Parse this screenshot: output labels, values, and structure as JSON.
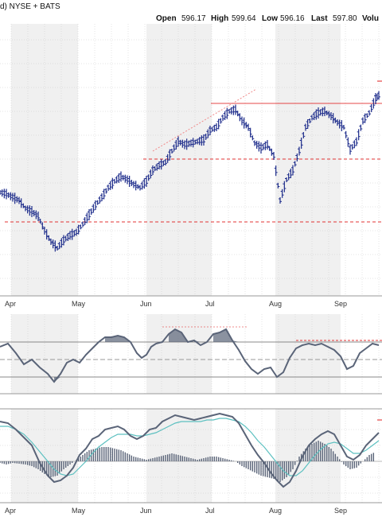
{
  "header": {
    "exchange": "d) NYSE + BATS",
    "open_label": "Open",
    "open_value": "596.17",
    "high_label": "High",
    "high_value": "599.64",
    "low_label": "Low",
    "low_value": "596.16",
    "last_label": "Last",
    "last_value": "597.80",
    "volume_label": "Volu"
  },
  "colors": {
    "price_bar": "#1b2a8a",
    "line_indicator": "#5a6478",
    "signal_line": "#5cc0c0",
    "histogram": "#5a6478",
    "trend_line": "#e02020",
    "band_shade": "#f0f0f0",
    "grid": "#c8c8c8"
  },
  "chart_data": [
    {
      "type": "bar",
      "subtype": "ohlc-price",
      "x_tick_labels": [
        "Apr",
        "May",
        "Jun",
        "Jul",
        "Aug",
        "Sep"
      ],
      "ohlc_close_path": [
        [
          0,
          242
        ],
        [
          8,
          244
        ],
        [
          16,
          248
        ],
        [
          24,
          252
        ],
        [
          32,
          262
        ],
        [
          40,
          266
        ],
        [
          48,
          272
        ],
        [
          56,
          290
        ],
        [
          64,
          304
        ],
        [
          72,
          312
        ],
        [
          80,
          302
        ],
        [
          88,
          296
        ],
        [
          96,
          292
        ],
        [
          104,
          282
        ],
        [
          112,
          270
        ],
        [
          120,
          258
        ],
        [
          128,
          248
        ],
        [
          136,
          236
        ],
        [
          144,
          228
        ],
        [
          152,
          222
        ],
        [
          160,
          226
        ],
        [
          168,
          232
        ],
        [
          176,
          236
        ],
        [
          184,
          228
        ],
        [
          192,
          214
        ],
        [
          200,
          208
        ],
        [
          208,
          204
        ],
        [
          216,
          190
        ],
        [
          224,
          178
        ],
        [
          232,
          182
        ],
        [
          240,
          180
        ],
        [
          248,
          178
        ],
        [
          256,
          176
        ],
        [
          264,
          164
        ],
        [
          272,
          160
        ],
        [
          280,
          148
        ],
        [
          288,
          140
        ],
        [
          296,
          138
        ],
        [
          304,
          152
        ],
        [
          312,
          160
        ],
        [
          320,
          180
        ],
        [
          328,
          186
        ],
        [
          336,
          182
        ],
        [
          344,
          196
        ],
        [
          352,
          252
        ],
        [
          360,
          226
        ],
        [
          368,
          214
        ],
        [
          376,
          190
        ],
        [
          384,
          160
        ],
        [
          392,
          148
        ],
        [
          400,
          142
        ],
        [
          408,
          140
        ],
        [
          416,
          146
        ],
        [
          424,
          154
        ],
        [
          432,
          160
        ],
        [
          440,
          188
        ],
        [
          448,
          178
        ],
        [
          456,
          152
        ],
        [
          464,
          142
        ],
        [
          472,
          124
        ],
        [
          478,
          118
        ]
      ],
      "horizontal_levels": [
        {
          "from": 265,
          "to": 480,
          "y": 130,
          "style": "solid"
        },
        {
          "from": 180,
          "to": 480,
          "y": 200,
          "style": "dashed"
        },
        {
          "from": 6,
          "to": 480,
          "y": 279,
          "style": "dashed"
        }
      ],
      "trend_lines": [
        {
          "from": [
            192,
            190
          ],
          "to": [
            322,
            112
          ],
          "style": "dotted"
        }
      ]
    },
    {
      "type": "line",
      "subtype": "oscillator",
      "line_path": [
        [
          0,
          436
        ],
        [
          10,
          432
        ],
        [
          20,
          444
        ],
        [
          30,
          458
        ],
        [
          40,
          452
        ],
        [
          50,
          462
        ],
        [
          60,
          470
        ],
        [
          68,
          480
        ],
        [
          76,
          470
        ],
        [
          84,
          456
        ],
        [
          92,
          452
        ],
        [
          100,
          456
        ],
        [
          108,
          446
        ],
        [
          116,
          438
        ],
        [
          124,
          430
        ],
        [
          132,
          424
        ],
        [
          140,
          424
        ],
        [
          148,
          422
        ],
        [
          156,
          424
        ],
        [
          164,
          430
        ],
        [
          172,
          444
        ],
        [
          178,
          450
        ],
        [
          184,
          446
        ],
        [
          190,
          436
        ],
        [
          196,
          432
        ],
        [
          204,
          430
        ],
        [
          212,
          420
        ],
        [
          220,
          414
        ],
        [
          228,
          418
        ],
        [
          236,
          430
        ],
        [
          244,
          428
        ],
        [
          252,
          434
        ],
        [
          260,
          430
        ],
        [
          268,
          420
        ],
        [
          276,
          418
        ],
        [
          284,
          414
        ],
        [
          292,
          428
        ],
        [
          300,
          440
        ],
        [
          308,
          454
        ],
        [
          316,
          464
        ],
        [
          324,
          470
        ],
        [
          332,
          464
        ],
        [
          340,
          462
        ],
        [
          348,
          474
        ],
        [
          356,
          468
        ],
        [
          364,
          450
        ],
        [
          372,
          438
        ],
        [
          380,
          434
        ],
        [
          388,
          432
        ],
        [
          396,
          434
        ],
        [
          404,
          432
        ],
        [
          412,
          436
        ],
        [
          420,
          440
        ],
        [
          428,
          448
        ],
        [
          436,
          464
        ],
        [
          444,
          460
        ],
        [
          452,
          444
        ],
        [
          460,
          438
        ],
        [
          468,
          432
        ],
        [
          476,
          434
        ]
      ],
      "upper_band": 430,
      "lower_band": 474,
      "mid_line": 452,
      "highlight_segments": [
        {
          "from": 204,
          "to": 312,
          "y": 411
        },
        {
          "from": 372,
          "to": 480,
          "y": 428
        }
      ]
    },
    {
      "type": "line",
      "subtype": "macd",
      "zero_line": 580,
      "main_path": [
        [
          0,
          530
        ],
        [
          10,
          532
        ],
        [
          20,
          540
        ],
        [
          30,
          550
        ],
        [
          40,
          560
        ],
        [
          50,
          582
        ],
        [
          60,
          598
        ],
        [
          68,
          606
        ],
        [
          76,
          604
        ],
        [
          84,
          598
        ],
        [
          92,
          588
        ],
        [
          100,
          572
        ],
        [
          108,
          564
        ],
        [
          116,
          552
        ],
        [
          124,
          548
        ],
        [
          132,
          540
        ],
        [
          140,
          538
        ],
        [
          148,
          536
        ],
        [
          156,
          540
        ],
        [
          164,
          548
        ],
        [
          172,
          552
        ],
        [
          180,
          548
        ],
        [
          188,
          540
        ],
        [
          196,
          538
        ],
        [
          204,
          530
        ],
        [
          212,
          526
        ],
        [
          220,
          522
        ],
        [
          228,
          524
        ],
        [
          236,
          526
        ],
        [
          244,
          528
        ],
        [
          252,
          526
        ],
        [
          260,
          524
        ],
        [
          268,
          522
        ],
        [
          276,
          520
        ],
        [
          284,
          522
        ],
        [
          292,
          524
        ],
        [
          300,
          532
        ],
        [
          308,
          546
        ],
        [
          316,
          560
        ],
        [
          324,
          572
        ],
        [
          332,
          582
        ],
        [
          340,
          594
        ],
        [
          348,
          604
        ],
        [
          356,
          612
        ],
        [
          364,
          606
        ],
        [
          372,
          592
        ],
        [
          380,
          574
        ],
        [
          388,
          560
        ],
        [
          396,
          552
        ],
        [
          404,
          546
        ],
        [
          412,
          542
        ],
        [
          420,
          546
        ],
        [
          428,
          560
        ],
        [
          436,
          574
        ],
        [
          444,
          578
        ],
        [
          452,
          572
        ],
        [
          460,
          560
        ],
        [
          468,
          552
        ],
        [
          476,
          544
        ]
      ],
      "signal_path": [
        [
          0,
          536
        ],
        [
          10,
          536
        ],
        [
          20,
          540
        ],
        [
          30,
          546
        ],
        [
          40,
          556
        ],
        [
          50,
          568
        ],
        [
          60,
          580
        ],
        [
          68,
          590
        ],
        [
          76,
          596
        ],
        [
          84,
          598
        ],
        [
          92,
          596
        ],
        [
          100,
          588
        ],
        [
          108,
          580
        ],
        [
          116,
          570
        ],
        [
          124,
          562
        ],
        [
          132,
          556
        ],
        [
          140,
          550
        ],
        [
          148,
          546
        ],
        [
          156,
          546
        ],
        [
          164,
          546
        ],
        [
          172,
          548
        ],
        [
          180,
          548
        ],
        [
          188,
          546
        ],
        [
          196,
          544
        ],
        [
          204,
          540
        ],
        [
          212,
          536
        ],
        [
          220,
          532
        ],
        [
          228,
          530
        ],
        [
          236,
          530
        ],
        [
          244,
          530
        ],
        [
          252,
          530
        ],
        [
          260,
          528
        ],
        [
          268,
          528
        ],
        [
          276,
          526
        ],
        [
          284,
          526
        ],
        [
          292,
          528
        ],
        [
          300,
          530
        ],
        [
          308,
          536
        ],
        [
          316,
          544
        ],
        [
          324,
          554
        ],
        [
          332,
          562
        ],
        [
          340,
          572
        ],
        [
          348,
          582
        ],
        [
          356,
          592
        ],
        [
          364,
          598
        ],
        [
          372,
          598
        ],
        [
          380,
          592
        ],
        [
          388,
          582
        ],
        [
          396,
          572
        ],
        [
          404,
          564
        ],
        [
          412,
          558
        ],
        [
          420,
          556
        ],
        [
          428,
          558
        ],
        [
          436,
          564
        ],
        [
          444,
          570
        ],
        [
          452,
          570
        ],
        [
          460,
          566
        ],
        [
          468,
          560
        ],
        [
          476,
          554
        ]
      ],
      "histogram": [
        [
          0,
          -2
        ],
        [
          8,
          -4
        ],
        [
          16,
          -2
        ],
        [
          24,
          -3
        ],
        [
          32,
          -4
        ],
        [
          40,
          -6
        ],
        [
          48,
          -10
        ],
        [
          56,
          -16
        ],
        [
          64,
          -20
        ],
        [
          72,
          -18
        ],
        [
          80,
          -10
        ],
        [
          88,
          -4
        ],
        [
          96,
          2
        ],
        [
          104,
          8
        ],
        [
          112,
          14
        ],
        [
          120,
          16
        ],
        [
          128,
          18
        ],
        [
          136,
          18
        ],
        [
          144,
          16
        ],
        [
          152,
          14
        ],
        [
          160,
          10
        ],
        [
          168,
          6
        ],
        [
          176,
          4
        ],
        [
          184,
          2
        ],
        [
          192,
          4
        ],
        [
          200,
          6
        ],
        [
          208,
          8
        ],
        [
          216,
          10
        ],
        [
          224,
          8
        ],
        [
          232,
          6
        ],
        [
          240,
          4
        ],
        [
          248,
          2
        ],
        [
          256,
          4
        ],
        [
          264,
          6
        ],
        [
          272,
          6
        ],
        [
          280,
          4
        ],
        [
          288,
          2
        ],
        [
          296,
          0
        ],
        [
          304,
          -6
        ],
        [
          312,
          -10
        ],
        [
          320,
          -14
        ],
        [
          328,
          -18
        ],
        [
          336,
          -20
        ],
        [
          344,
          -22
        ],
        [
          352,
          -26
        ],
        [
          360,
          -20
        ],
        [
          368,
          -10
        ],
        [
          376,
          6
        ],
        [
          384,
          16
        ],
        [
          392,
          22
        ],
        [
          400,
          26
        ],
        [
          408,
          22
        ],
        [
          416,
          16
        ],
        [
          424,
          6
        ],
        [
          432,
          -4
        ],
        [
          440,
          -10
        ],
        [
          448,
          -8
        ],
        [
          456,
          0
        ],
        [
          464,
          8
        ],
        [
          472,
          12
        ]
      ],
      "marker_segment": {
        "from": 474,
        "to": 480,
        "y": 528
      }
    }
  ]
}
